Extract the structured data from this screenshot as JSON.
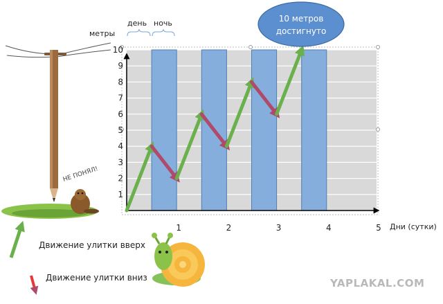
{
  "chart_data": {
    "type": "line",
    "title": "",
    "xlabel": "Дни (сутки)",
    "ylabel": "метры",
    "xlim": [
      0,
      5
    ],
    "ylim": [
      0,
      10
    ],
    "x_ticks": [
      "1",
      "2",
      "3",
      "4",
      "5"
    ],
    "y_ticks": [
      "1",
      "2",
      "3",
      "4",
      "5",
      "6",
      "7",
      "8",
      "9",
      "10"
    ],
    "grid": true,
    "phase_labels": {
      "day": "день",
      "night": "ночь"
    },
    "night_bands": [
      [
        0.5,
        1.0
      ],
      [
        1.5,
        2.0
      ],
      [
        2.5,
        3.0
      ],
      [
        3.5,
        4.0
      ]
    ],
    "series": [
      {
        "values": [
          [
            0,
            0
          ],
          [
            0.5,
            4
          ],
          [
            1,
            2
          ],
          [
            1.5,
            6
          ],
          [
            2,
            4
          ],
          [
            2.5,
            8
          ],
          [
            3,
            6
          ],
          [
            3.5,
            10
          ]
        ]
      }
    ],
    "callout": {
      "line1": "10 метров",
      "line2": "достигнуто",
      "x": 3.5,
      "y": 10
    }
  },
  "legend": {
    "up": "Движение улитки вверх",
    "down": "Движение улитки вниз"
  },
  "beaver_sign": "НЕ ПОНЯЛ!",
  "watermark": "YAPLAKAL.COM",
  "colors": {
    "up": "#6ab04c",
    "down": "#b04a6a",
    "band": "#86aedc",
    "band_border": "#4f7fb5",
    "bubble": "#5b8fd0",
    "plot_bg": "#d9d9d9"
  }
}
